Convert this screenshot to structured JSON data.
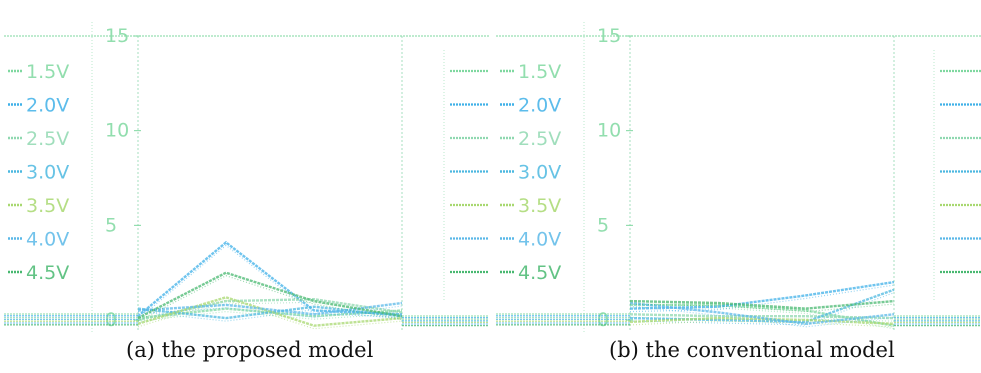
{
  "chart_data": [
    {
      "type": "line",
      "caption": "(a) the proposed model",
      "ylim": [
        0,
        15
      ],
      "y_ticks": [
        0,
        5,
        10,
        15
      ],
      "grid": false,
      "legend_position": "left and right",
      "series": [
        {
          "name": "1.5V",
          "color": "#7fd8a0",
          "points": [
            [
              0,
              0.1
            ],
            [
              1,
              0.6
            ],
            [
              2,
              0.2
            ],
            [
              3,
              0.5
            ]
          ]
        },
        {
          "name": "2.0V",
          "color": "#3fb0e8",
          "points": [
            [
              0,
              0.2
            ],
            [
              1,
              4.1
            ],
            [
              2,
              0.5
            ],
            [
              3,
              0.3
            ]
          ]
        },
        {
          "name": "2.5V",
          "color": "#8fd8b0",
          "points": [
            [
              0,
              0.0
            ],
            [
              1,
              1.0
            ],
            [
              2,
              1.1
            ],
            [
              3,
              0.4
            ]
          ]
        },
        {
          "name": "3.0V",
          "color": "#4cb8e0",
          "points": [
            [
              0,
              0.6
            ],
            [
              1,
              0.1
            ],
            [
              2,
              0.7
            ],
            [
              3,
              0.2
            ]
          ]
        },
        {
          "name": "3.5V",
          "color": "#a8d870",
          "points": [
            [
              0,
              -0.2
            ],
            [
              1,
              1.2
            ],
            [
              2,
              -0.3
            ],
            [
              3,
              0.1
            ]
          ]
        },
        {
          "name": "4.0V",
          "color": "#5ab8e8",
          "points": [
            [
              0,
              0.5
            ],
            [
              1,
              0.8
            ],
            [
              2,
              0.3
            ],
            [
              3,
              0.9
            ]
          ]
        },
        {
          "name": "4.5V",
          "color": "#48b870",
          "points": [
            [
              0,
              0.1
            ],
            [
              1,
              2.5
            ],
            [
              2,
              1.0
            ],
            [
              3,
              0.2
            ]
          ]
        }
      ]
    },
    {
      "type": "line",
      "caption": "(b) the conventional model",
      "ylim": [
        0,
        15
      ],
      "y_ticks": [
        0,
        5,
        10,
        15
      ],
      "grid": false,
      "legend_position": "left and right",
      "series": [
        {
          "name": "1.5V",
          "color": "#7fd8a0",
          "points": [
            [
              0,
              0.8
            ],
            [
              1,
              0.8
            ],
            [
              2,
              0.5
            ],
            [
              3,
              -0.3
            ]
          ]
        },
        {
          "name": "2.0V",
          "color": "#3fb0e8",
          "points": [
            [
              0,
              0.6
            ],
            [
              1,
              0.7
            ],
            [
              2,
              1.3
            ],
            [
              3,
              2.0
            ]
          ]
        },
        {
          "name": "2.5V",
          "color": "#8fd8b0",
          "points": [
            [
              0,
              0.3
            ],
            [
              1,
              0.2
            ],
            [
              2,
              0.2
            ],
            [
              3,
              0.1
            ]
          ]
        },
        {
          "name": "3.0V",
          "color": "#4cb8e0",
          "points": [
            [
              0,
              0.1
            ],
            [
              1,
              0.0
            ],
            [
              2,
              -0.1
            ],
            [
              3,
              1.6
            ]
          ]
        },
        {
          "name": "3.5V",
          "color": "#a8d870",
          "points": [
            [
              0,
              -0.1
            ],
            [
              1,
              0.1
            ],
            [
              2,
              0.0
            ],
            [
              3,
              -0.2
            ]
          ]
        },
        {
          "name": "4.0V",
          "color": "#5ab8e8",
          "points": [
            [
              0,
              0.9
            ],
            [
              1,
              0.4
            ],
            [
              2,
              -0.2
            ],
            [
              3,
              0.3
            ]
          ]
        },
        {
          "name": "4.5V",
          "color": "#48b870",
          "points": [
            [
              0,
              1.0
            ],
            [
              1,
              0.9
            ],
            [
              2,
              0.6
            ],
            [
              3,
              1.0
            ]
          ]
        }
      ]
    }
  ]
}
